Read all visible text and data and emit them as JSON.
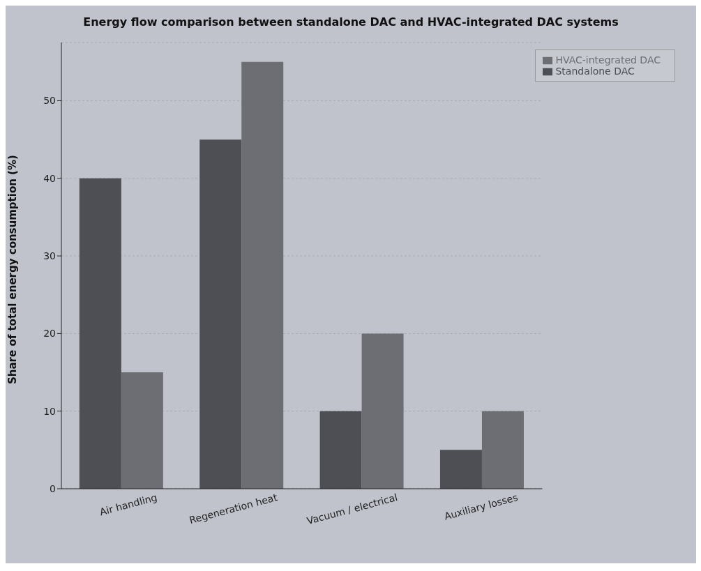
{
  "chart_data": {
    "type": "bar",
    "title": "Energy flow comparison between standalone DAC and HVAC-integrated DAC systems",
    "ylabel": "Share of total energy consumption (%)",
    "categories": [
      "Air handling",
      "Regeneration heat",
      "Vacuum / electrical",
      "Auxiliary losses"
    ],
    "series": [
      {
        "name": "Standalone DAC",
        "color": "#4d4f55",
        "values": [
          40,
          45,
          10,
          5
        ]
      },
      {
        "name": "HVAC-integrated DAC",
        "color": "#6c6e73",
        "values": [
          15,
          55,
          20,
          10
        ]
      }
    ],
    "ylim": [
      0,
      57.5
    ],
    "yticks": [
      0,
      10,
      20,
      30,
      40,
      50
    ],
    "grid": "y",
    "legend": "top right"
  }
}
